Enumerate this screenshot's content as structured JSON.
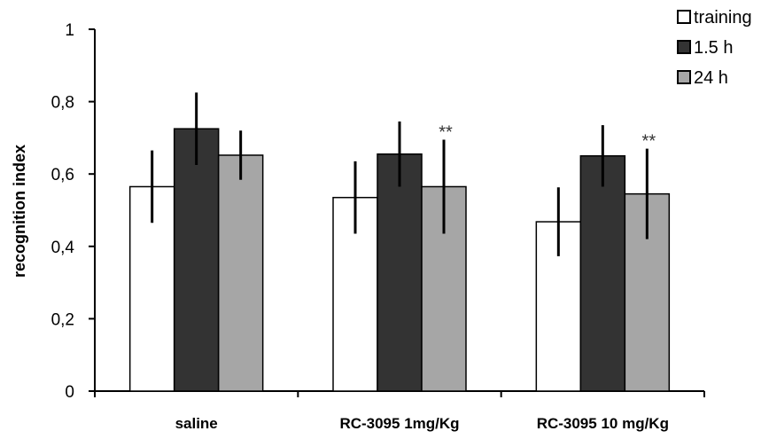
{
  "chart_data": {
    "type": "bar",
    "title": "",
    "xlabel": "",
    "ylabel": "recognition index",
    "ylim": [
      0,
      1
    ],
    "yticks": [
      "0",
      "0,2",
      "0,4",
      "0,6",
      "0,8",
      "1"
    ],
    "yticks_values": [
      0,
      0.2,
      0.4,
      0.6,
      0.8,
      1
    ],
    "categories": [
      "saline",
      "RC-3095 1mg/Kg",
      "RC-3095 10 mg/Kg"
    ],
    "series": [
      {
        "name": "training",
        "color": "#ffffff",
        "values": [
          0.565,
          0.535,
          0.468
        ],
        "error": [
          0.1,
          0.1,
          0.095
        ]
      },
      {
        "name": "1.5 h",
        "color": "#333333",
        "values": [
          0.725,
          0.655,
          0.65
        ],
        "error": [
          0.1,
          0.09,
          0.085
        ]
      },
      {
        "name": "24 h",
        "color": "#a6a6a6",
        "values": [
          0.652,
          0.565,
          0.545
        ],
        "error": [
          0.068,
          0.13,
          0.125
        ]
      }
    ],
    "annotations": [
      {
        "category": "RC-3095 1mg/Kg",
        "series": "24 h",
        "text": "**"
      },
      {
        "category": "RC-3095 10 mg/Kg",
        "series": "24 h",
        "text": "**"
      }
    ],
    "legend_position": "top-right",
    "grid": false
  }
}
